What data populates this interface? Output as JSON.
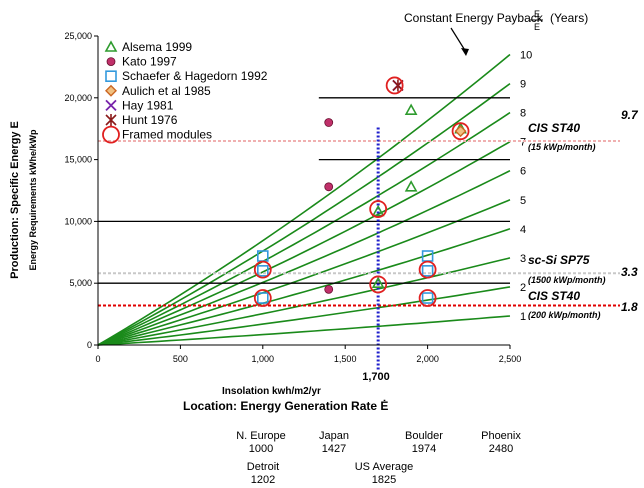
{
  "chart_data": {
    "type": "line",
    "title": "Constant Energy Payback",
    "title_fraction_top": "E",
    "title_fraction_bottom": "E",
    "title_units": "(Years)",
    "xlabel": "Insolation kwh/m2/yr",
    "xlabel2": "Location: Energy Generation Rate Ė",
    "ylabel": "Production: Specific Energy E",
    "ylabel2": "Energy Requirements kWhe/kWp",
    "xlim": [
      0,
      2500
    ],
    "ylim": [
      0,
      25000
    ],
    "x_ticks": [
      "0",
      "500",
      "1,000",
      "1,500",
      "2,000",
      "2,500"
    ],
    "y_ticks": [
      "0",
      "5,000",
      "10,000",
      "15,000",
      "20,000",
      "25,000"
    ],
    "payback_lines": [
      {
        "label": "1",
        "slope": 1.0
      },
      {
        "label": "2",
        "slope": 2.0
      },
      {
        "label": "3",
        "slope": 3.0
      },
      {
        "label": "4",
        "slope": 4.0
      },
      {
        "label": "5",
        "slope": 5.0
      },
      {
        "label": "6",
        "slope": 6.0
      },
      {
        "label": "7",
        "slope": 7.0
      },
      {
        "label": "8",
        "slope": 8.0
      },
      {
        "label": "9",
        "slope": 9.0
      },
      {
        "label": "10",
        "slope": 10.0
      }
    ],
    "vertical_marker": {
      "x": 1700,
      "label": "1,700"
    },
    "horizontal_lines": [
      {
        "y": 3200,
        "color": "#e00000",
        "dashed": true,
        "label": "CIS ST40",
        "sublabel": "(200 kWp/month)",
        "value": "1.8"
      },
      {
        "y": 5800,
        "color": "#c8c8c8",
        "dashed": true,
        "label": "sc-Si SP75",
        "sublabel": "(1500 kWp/month)",
        "value": "3.3"
      },
      {
        "y": 16500,
        "color": "#f0b0b0",
        "dashed": true,
        "label": "CIS ST40",
        "sublabel": "(15 kWp/month)",
        "value": "9.7"
      }
    ],
    "black_lines": [
      {
        "y": 20000,
        "x0": 1340,
        "x1": 2500
      },
      {
        "y": 15000,
        "x0": 1340,
        "x1": 2500
      },
      {
        "y": 10000,
        "x0": 0,
        "x1": 2500
      },
      {
        "y": 5000,
        "x0": 0,
        "x1": 2500
      }
    ],
    "series": [
      {
        "name": "Alsema 1999",
        "marker": "triangle",
        "color": "#2e9b2e",
        "points": [
          [
            1700,
            10800
          ],
          [
            1900,
            19000
          ],
          [
            1900,
            12800
          ],
          [
            1700,
            5000
          ],
          [
            2200,
            17500
          ]
        ]
      },
      {
        "name": "Kato 1997",
        "marker": "circle",
        "color": "#c0306a",
        "points": [
          [
            1400,
            18000
          ],
          [
            1400,
            12800
          ],
          [
            1400,
            4500
          ]
        ]
      },
      {
        "name": "Schaefer & Hagedorn 1992",
        "marker": "square",
        "color": "#3399dd",
        "points": [
          [
            1000,
            7200
          ],
          [
            1000,
            6000
          ],
          [
            1000,
            3800
          ],
          [
            2000,
            7200
          ],
          [
            2000,
            6000
          ],
          [
            2000,
            3800
          ]
        ]
      },
      {
        "name": "Aulich et al 1985",
        "marker": "diamond",
        "color": "#cc6622",
        "points": [
          [
            2200,
            17300
          ]
        ]
      },
      {
        "name": "Hay 1981",
        "marker": "x",
        "color": "#7722aa",
        "points": [
          [
            1820,
            21000
          ]
        ]
      },
      {
        "name": "Hunt 1976",
        "marker": "star",
        "color": "#8b1a1a",
        "points": [
          [
            1820,
            21000
          ]
        ]
      },
      {
        "name": "Framed modules",
        "marker": "ring",
        "color": "#e02020",
        "points": [
          [
            1000,
            6100
          ],
          [
            1000,
            3800
          ],
          [
            1700,
            11000
          ],
          [
            1700,
            4900
          ],
          [
            2000,
            6100
          ],
          [
            2000,
            3800
          ],
          [
            2200,
            17300
          ],
          [
            1800,
            21000
          ]
        ]
      }
    ],
    "locations": [
      {
        "name": "N. Europe",
        "value": "1000"
      },
      {
        "name": "Japan",
        "value": "1427"
      },
      {
        "name": "Boulder",
        "value": "1974"
      },
      {
        "name": "Phoenix",
        "value": "2480"
      },
      {
        "name": "Detroit",
        "value": "1202"
      },
      {
        "name": "US Average",
        "value": "1825"
      }
    ]
  }
}
